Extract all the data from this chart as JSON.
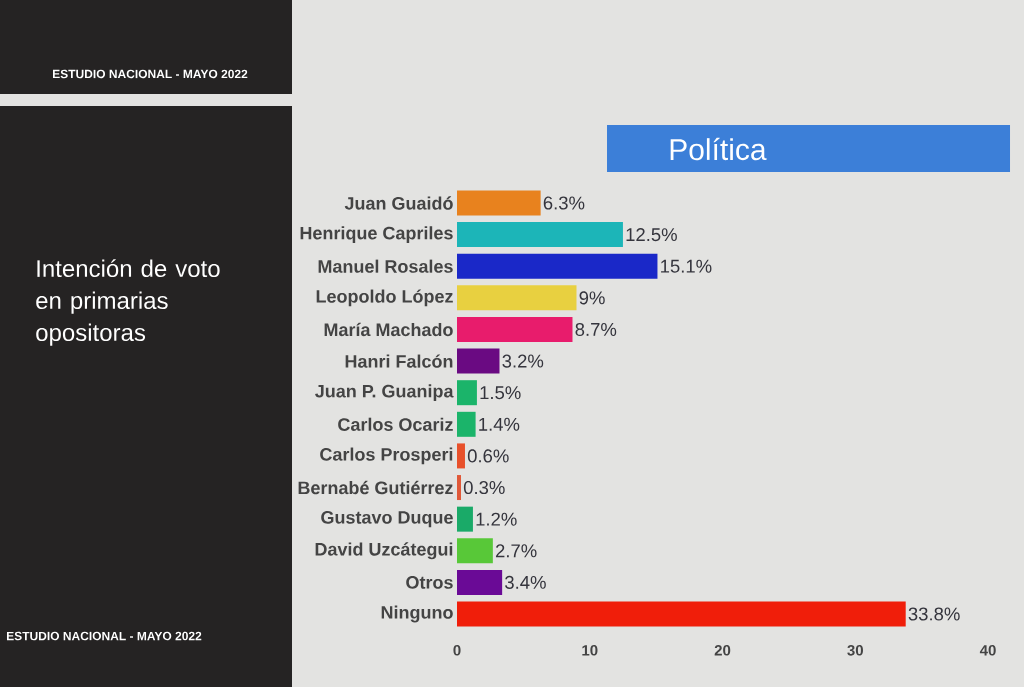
{
  "chart_data": {
    "type": "bar",
    "orientation": "horizontal",
    "title": "Intención de voto en primarias opositoras",
    "subtitle": "Política",
    "categories": [
      "Juan Guaidó",
      "Henrique Capriles",
      "Manuel Rosales",
      "Leopoldo López",
      "María Machado",
      "Hanri Falcón",
      "Juan P. Guanipa",
      "Carlos Ocariz",
      "Carlos Prosperi",
      "Bernabé Gutiérrez",
      "Gustavo Duque",
      "David Uzcátegui",
      "Otros",
      "Ninguno"
    ],
    "values": [
      6.3,
      12.5,
      15.1,
      9,
      8.7,
      3.2,
      1.5,
      1.4,
      0.6,
      0.3,
      1.2,
      2.7,
      3.4,
      33.8
    ],
    "colors": [
      "#e8821e",
      "#1cb5b8",
      "#1a28c8",
      "#e8d040",
      "#e81c6c",
      "#6a0a82",
      "#1bb46a",
      "#1bb46a",
      "#e8502a",
      "#e05838",
      "#1aaa68",
      "#58c838",
      "#6a0a96",
      "#f01e0a"
    ],
    "value_labels": [
      "6.3%",
      "12.5%",
      "15.1%",
      "9%",
      "8.7%",
      "3.2%",
      "1.5%",
      "1.4%",
      "0.6%",
      "0.3%",
      "1.2%",
      "2.7%",
      "3.4%",
      "33.8%"
    ],
    "xlim": [
      0,
      40
    ],
    "xticks": [
      0,
      10,
      20,
      30,
      40
    ],
    "annotations": [
      "ESTUDIO NACIONAL - MAYO 2022",
      "ESTUDIO NACIONAL - MAYO 2022"
    ]
  }
}
